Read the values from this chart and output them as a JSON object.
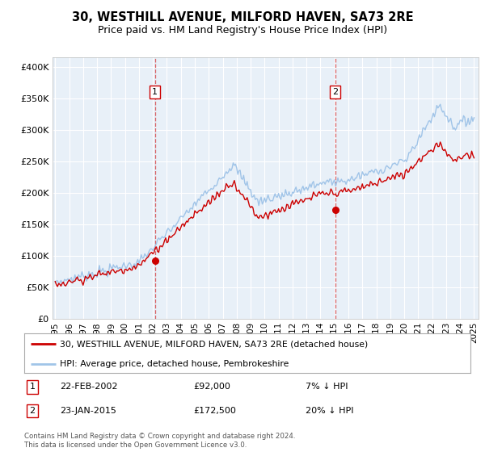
{
  "title": "30, WESTHILL AVENUE, MILFORD HAVEN, SA73 2RE",
  "subtitle": "Price paid vs. HM Land Registry's House Price Index (HPI)",
  "title_fontsize": 10.5,
  "subtitle_fontsize": 9,
  "hpi_color": "#a0c4e8",
  "price_color": "#cc0000",
  "marker_color": "#cc0000",
  "ylabel_ticks": [
    "£0",
    "£50K",
    "£100K",
    "£150K",
    "£200K",
    "£250K",
    "£300K",
    "£350K",
    "£400K"
  ],
  "ytick_vals": [
    0,
    50000,
    100000,
    150000,
    200000,
    250000,
    300000,
    350000,
    400000
  ],
  "ylim": [
    0,
    415000
  ],
  "xlim_start": 1994.8,
  "xlim_end": 2025.3,
  "xtick_years": [
    1995,
    1996,
    1997,
    1998,
    1999,
    2000,
    2001,
    2002,
    2003,
    2004,
    2005,
    2006,
    2007,
    2008,
    2009,
    2010,
    2011,
    2012,
    2013,
    2014,
    2015,
    2016,
    2017,
    2018,
    2019,
    2020,
    2021,
    2022,
    2023,
    2024,
    2025
  ],
  "sale1_x": 2002.14,
  "sale1_y": 92000,
  "sale1_label": "1",
  "sale2_x": 2015.05,
  "sale2_y": 172500,
  "sale2_label": "2",
  "legend_red_label": "30, WESTHILL AVENUE, MILFORD HAVEN, SA73 2RE (detached house)",
  "legend_blue_label": "HPI: Average price, detached house, Pembrokeshire",
  "note1_label": "1",
  "note1_date": "22-FEB-2002",
  "note1_price": "£92,000",
  "note1_hpi": "7% ↓ HPI",
  "note2_label": "2",
  "note2_date": "23-JAN-2015",
  "note2_price": "£172,500",
  "note2_hpi": "20% ↓ HPI",
  "footer": "Contains HM Land Registry data © Crown copyright and database right 2024.\nThis data is licensed under the Open Government Licence v3.0."
}
